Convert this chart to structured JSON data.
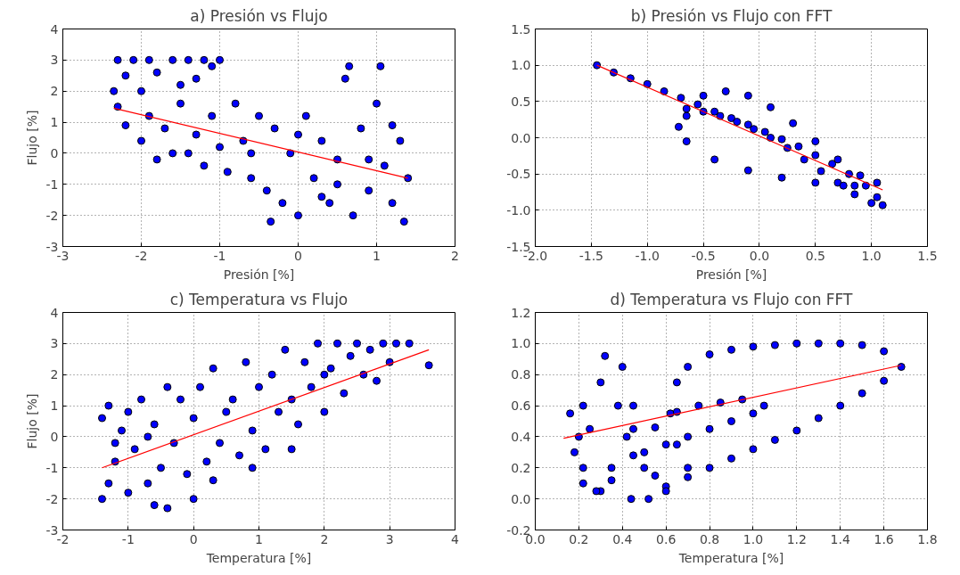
{
  "chart_data": [
    {
      "type": "scatter",
      "title": "a) Presión vs Flujo",
      "xlabel": "Presión [%]",
      "ylabel": "Flujo [%]",
      "xlim": [
        -3,
        2
      ],
      "ylim": [
        -3,
        4
      ],
      "xticks": [
        -3,
        -2,
        -1,
        0,
        1,
        2
      ],
      "yticks": [
        -3,
        -2,
        -1,
        0,
        1,
        2,
        3,
        4
      ],
      "grid": true,
      "series": [
        {
          "marker": "circle",
          "color": "#0000ff",
          "x": [
            -2.3,
            -2.2,
            -2.1,
            -2.0,
            -1.9,
            -1.8,
            -1.6,
            -1.5,
            -1.4,
            -1.3,
            -1.2,
            -1.1,
            -1.0,
            -2.3,
            -2.2,
            -2.0,
            -1.9,
            -1.8,
            -1.7,
            -1.5,
            -1.4,
            -1.3,
            -1.2,
            -1.1,
            -1.0,
            -0.9,
            -0.8,
            -0.7,
            -0.6,
            -0.5,
            -0.4,
            -0.3,
            -0.2,
            -0.1,
            0.0,
            0.1,
            0.2,
            0.3,
            0.4,
            0.5,
            0.6,
            0.65,
            0.7,
            0.8,
            0.9,
            1.0,
            1.05,
            1.1,
            1.2,
            1.3,
            1.35,
            1.4,
            -0.35,
            0.0,
            -0.6,
            0.5,
            1.2,
            0.9,
            0.3,
            -2.35,
            -1.6
          ],
          "values": [
            3.0,
            2.5,
            3.0,
            2.0,
            3.0,
            2.6,
            3.0,
            2.2,
            3.0,
            2.4,
            3.0,
            2.8,
            3.0,
            1.5,
            0.9,
            0.4,
            1.2,
            -0.2,
            0.8,
            1.6,
            0.0,
            0.6,
            -0.4,
            1.2,
            0.2,
            -0.6,
            1.6,
            0.4,
            -0.8,
            1.2,
            -1.2,
            0.8,
            -1.6,
            0.0,
            -2.0,
            1.2,
            -0.8,
            0.4,
            -1.6,
            -0.2,
            2.4,
            2.8,
            -2.0,
            0.8,
            -1.2,
            1.6,
            2.8,
            -0.4,
            -1.6,
            0.4,
            -2.2,
            -0.8,
            -2.2,
            0.6,
            0.0,
            -1.0,
            0.9,
            -0.2,
            -1.4,
            2.0,
            0.0
          ]
        },
        {
          "type": "line",
          "color": "#ff0000",
          "x": [
            -2.35,
            1.4
          ],
          "values": [
            1.45,
            -0.8
          ]
        }
      ]
    },
    {
      "type": "scatter",
      "title": "b) Presión vs Flujo con FFT",
      "xlabel": "Presión [%]",
      "xlim": [
        -2.0,
        1.5
      ],
      "ylim": [
        -1.5,
        1.5
      ],
      "xticks": [
        {
          "value": -2,
          "label": "-2.0"
        },
        -1.5,
        {
          "value": -1,
          "label": "-1.0"
        },
        -0.5,
        {
          "value": 0,
          "label": "0.0"
        },
        0.5,
        {
          "value": 1,
          "label": "1.0"
        },
        1.5
      ],
      "yticks": [
        -1.5,
        {
          "value": -1,
          "label": "-1.0"
        },
        -0.5,
        {
          "value": 0,
          "label": "0.0"
        },
        0.5,
        {
          "value": 1,
          "label": "1.0"
        },
        1.5
      ],
      "grid": true,
      "series": [
        {
          "marker": "circle",
          "color": "#0000ff",
          "x": [
            -1.45,
            -1.3,
            -1.15,
            -1.0,
            -0.85,
            -0.7,
            -0.55,
            -0.4,
            -0.25,
            -0.1,
            0.05,
            0.2,
            0.35,
            0.5,
            0.65,
            0.8,
            0.95,
            1.05,
            1.1,
            1.0,
            0.85,
            0.7,
            0.55,
            0.4,
            0.25,
            0.1,
            -0.05,
            -0.2,
            -0.35,
            -0.5,
            -0.65,
            -0.72,
            -0.65,
            -0.5,
            -0.3,
            -0.1,
            0.1,
            0.3,
            0.5,
            0.7,
            0.9,
            1.05,
            0.85,
            0.75,
            0.5,
            0.2,
            -0.1,
            -0.4,
            -0.65
          ],
          "values": [
            1.0,
            0.9,
            0.82,
            0.74,
            0.64,
            0.55,
            0.46,
            0.36,
            0.27,
            0.18,
            0.08,
            -0.02,
            -0.12,
            -0.24,
            -0.36,
            -0.5,
            -0.66,
            -0.82,
            -0.93,
            -0.9,
            -0.78,
            -0.62,
            -0.46,
            -0.3,
            -0.14,
            0.0,
            0.12,
            0.22,
            0.3,
            0.36,
            0.3,
            0.15,
            0.4,
            0.58,
            0.64,
            0.58,
            0.42,
            0.2,
            -0.05,
            -0.3,
            -0.52,
            -0.62,
            -0.66,
            -0.66,
            -0.62,
            -0.55,
            -0.45,
            -0.3,
            -0.05
          ]
        },
        {
          "type": "line",
          "color": "#ff0000",
          "x": [
            -1.45,
            1.1
          ],
          "values": [
            1.0,
            -0.72
          ]
        }
      ]
    },
    {
      "type": "scatter",
      "title": "c) Temperatura vs Flujo",
      "xlabel": "Temperatura [%]",
      "ylabel": "Flujo [%]",
      "xlim": [
        -2,
        4
      ],
      "ylim": [
        -3,
        4
      ],
      "xticks": [
        -2,
        -1,
        0,
        1,
        2,
        3,
        4
      ],
      "yticks": [
        -3,
        -2,
        -1,
        0,
        1,
        2,
        3,
        4
      ],
      "grid": true,
      "series": [
        {
          "marker": "circle",
          "color": "#0000ff",
          "x": [
            -1.4,
            -1.4,
            -1.3,
            -1.3,
            -1.2,
            -1.1,
            -1.0,
            -1.0,
            -0.9,
            -0.8,
            -0.7,
            -0.6,
            -0.6,
            -0.5,
            -0.4,
            -0.4,
            -0.3,
            -0.2,
            -0.1,
            0.0,
            0.0,
            0.1,
            0.2,
            0.3,
            0.4,
            0.5,
            0.6,
            0.7,
            0.8,
            0.9,
            1.0,
            1.1,
            1.2,
            1.3,
            1.4,
            1.5,
            1.6,
            1.7,
            1.8,
            1.9,
            2.0,
            2.1,
            2.2,
            2.3,
            2.4,
            2.5,
            2.6,
            2.7,
            2.8,
            2.9,
            3.0,
            3.1,
            3.3,
            3.6,
            -1.2,
            -0.7,
            0.3,
            0.9,
            1.5,
            2.0
          ],
          "values": [
            -2.0,
            0.6,
            -1.5,
            1.0,
            -0.8,
            0.2,
            -1.8,
            0.8,
            -0.4,
            1.2,
            -1.5,
            -2.2,
            0.4,
            -1.0,
            -2.3,
            1.6,
            -0.2,
            1.2,
            -1.2,
            -2.0,
            0.6,
            1.6,
            -0.8,
            2.2,
            -0.2,
            0.8,
            1.2,
            -0.6,
            2.4,
            0.2,
            1.6,
            -0.4,
            2.0,
            0.8,
            2.8,
            1.2,
            0.4,
            2.4,
            1.6,
            3.0,
            0.8,
            2.2,
            3.0,
            1.4,
            2.6,
            3.0,
            2.0,
            2.8,
            1.8,
            3.0,
            2.4,
            3.0,
            3.0,
            2.3,
            -0.2,
            0.0,
            -1.4,
            -1.0,
            -0.4,
            2.0
          ]
        },
        {
          "type": "line",
          "color": "#ff0000",
          "x": [
            -1.4,
            3.6
          ],
          "values": [
            -1.0,
            2.8
          ]
        }
      ]
    },
    {
      "type": "scatter",
      "title": "d) Temperatura vs Flujo con FFT",
      "xlabel": "Temperatura [%]",
      "xlim": [
        0.0,
        1.8
      ],
      "ylim": [
        -0.2,
        1.2
      ],
      "xticks": [
        {
          "value": 0,
          "label": "0.0"
        },
        0.2,
        0.4,
        0.6,
        0.8,
        {
          "value": 1,
          "label": "1.0"
        },
        1.2,
        1.4,
        1.6,
        1.8
      ],
      "yticks": [
        -0.2,
        {
          "value": 0,
          "label": "0.0"
        },
        0.2,
        0.4,
        0.6,
        0.8,
        {
          "value": 1,
          "label": "1.0"
        },
        1.2
      ],
      "grid": true,
      "series": [
        {
          "marker": "circle",
          "color": "#0000ff",
          "x": [
            0.52,
            0.6,
            0.7,
            0.8,
            0.9,
            1.0,
            1.1,
            1.2,
            1.3,
            1.4,
            1.5,
            1.6,
            1.68,
            1.6,
            1.5,
            1.4,
            1.3,
            1.2,
            1.1,
            1.0,
            0.9,
            0.8,
            0.7,
            0.65,
            0.62,
            0.65,
            0.7,
            0.6,
            0.55,
            0.5,
            0.45,
            0.38,
            0.3,
            0.32,
            0.4,
            0.45,
            0.42,
            0.35,
            0.3,
            0.22,
            0.18,
            0.25,
            0.22,
            0.16,
            0.2,
            0.22,
            0.28,
            0.35,
            0.45,
            0.55,
            0.65,
            0.75,
            0.85,
            0.95,
            1.05,
            1.0,
            0.9,
            0.8,
            0.7,
            0.6,
            0.5,
            0.44
          ],
          "values": [
            0.0,
            0.08,
            0.14,
            0.2,
            0.26,
            0.32,
            0.38,
            0.44,
            0.52,
            0.6,
            0.68,
            0.76,
            0.85,
            0.95,
            0.99,
            1.0,
            1.0,
            1.0,
            0.99,
            0.98,
            0.96,
            0.93,
            0.85,
            0.75,
            0.55,
            0.35,
            0.2,
            0.05,
            0.15,
            0.3,
            0.45,
            0.6,
            0.75,
            0.92,
            0.85,
            0.6,
            0.4,
            0.2,
            0.05,
            0.1,
            0.3,
            0.45,
            0.6,
            0.55,
            0.4,
            0.2,
            0.05,
            0.12,
            0.28,
            0.46,
            0.56,
            0.6,
            0.62,
            0.64,
            0.6,
            0.55,
            0.5,
            0.45,
            0.4,
            0.35,
            0.2,
            0.0
          ]
        },
        {
          "type": "line",
          "color": "#ff0000",
          "x": [
            0.13,
            1.68
          ],
          "values": [
            0.39,
            0.86
          ]
        }
      ]
    }
  ]
}
